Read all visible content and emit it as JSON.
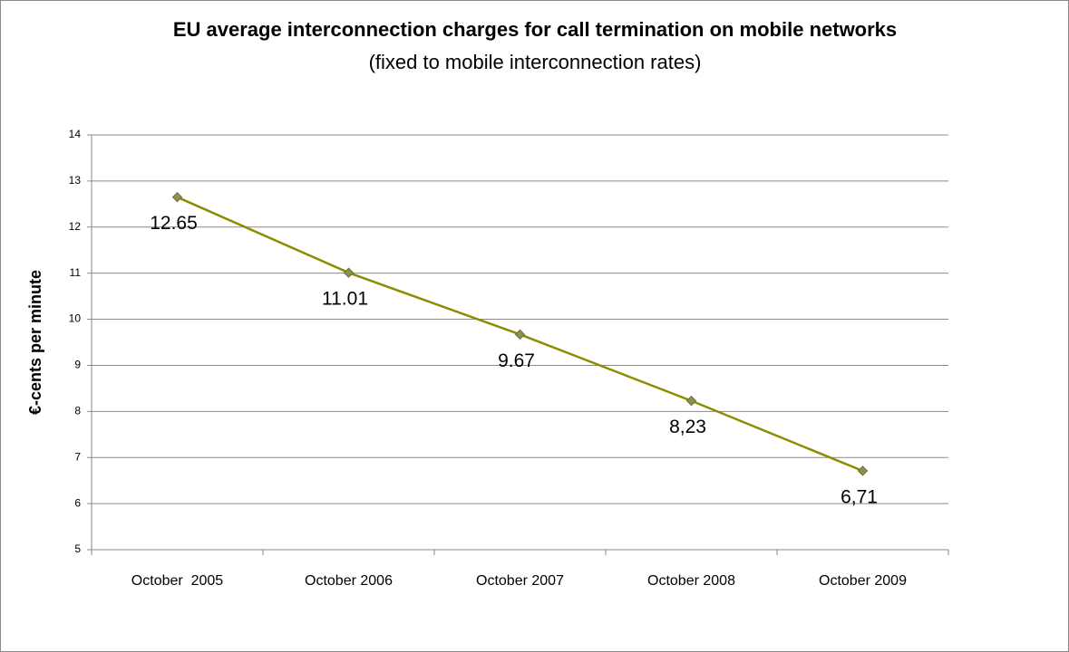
{
  "chart_data": {
    "type": "line",
    "title": "EU average interconnection charges for call termination on mobile networks",
    "subtitle": "(fixed to mobile interconnection rates)",
    "y_label": "€-cents per minute",
    "categories": [
      "October  2005",
      "October 2006",
      "October 2007",
      "October 2008",
      "October 2009"
    ],
    "values": [
      12.65,
      11.01,
      9.67,
      8.23,
      6.71
    ],
    "value_labels": [
      "12.65",
      "11.01",
      "9.67",
      "8,23",
      "6,71"
    ],
    "color": "#8c8c00",
    "ylim": [
      5,
      14
    ],
    "yticks": [
      5,
      6,
      7,
      8,
      9,
      10,
      11,
      12,
      13,
      14
    ],
    "grid": true
  }
}
